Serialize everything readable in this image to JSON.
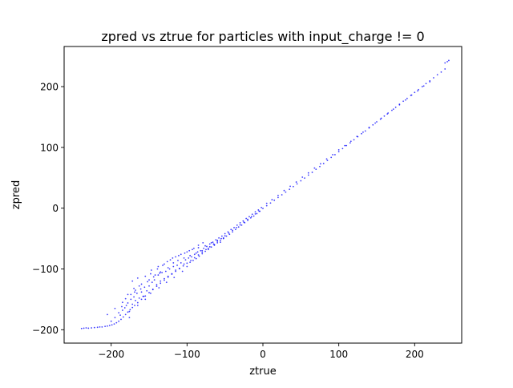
{
  "chart_data": {
    "type": "scatter",
    "title": "zpred vs ztrue for particles with input_charge != 0",
    "xlabel": "ztrue",
    "ylabel": "zpred",
    "xlim": [
      -262,
      262
    ],
    "ylim": [
      -222,
      266
    ],
    "xticks": [
      -200,
      -100,
      0,
      100,
      200
    ],
    "yticks": [
      -200,
      -100,
      0,
      100,
      200
    ],
    "xtick_labels": [
      "−200",
      "−100",
      "0",
      "100",
      "200"
    ],
    "ytick_labels": [
      "−200",
      "−100",
      "0",
      "100",
      "200"
    ],
    "grid": false,
    "legend": "none",
    "marker_color": "#0000ff",
    "series": [
      {
        "points": [
          [
            -239,
            -198
          ],
          [
            -236,
            -197.5
          ],
          [
            -233,
            -197
          ],
          [
            -230,
            -197.5
          ],
          [
            -226,
            -197
          ],
          [
            -222,
            -196.5
          ],
          [
            -218,
            -196
          ],
          [
            -215,
            -195.5
          ],
          [
            -212,
            -195.5
          ],
          [
            -208,
            -194.5
          ],
          [
            -205,
            -194
          ],
          [
            -202,
            -193
          ],
          [
            -199,
            -192
          ],
          [
            -196,
            -190.5
          ],
          [
            -193,
            -188.5
          ],
          [
            -190,
            -186
          ],
          [
            -187,
            -183
          ],
          [
            -184,
            -179
          ],
          [
            -181,
            -175
          ],
          [
            -178,
            -171
          ],
          [
            -175,
            -167
          ],
          [
            -172,
            -163.5
          ],
          [
            -169,
            -160
          ],
          [
            -165,
            -155.5
          ],
          [
            -160,
            -150
          ],
          [
            -155,
            -144.5
          ],
          [
            -150,
            -139
          ],
          [
            -145,
            -133.5
          ],
          [
            -140,
            -128.5
          ],
          [
            -135,
            -123.5
          ],
          [
            -130,
            -118.5
          ],
          [
            -125,
            -113.5
          ],
          [
            -120,
            -108.5
          ],
          [
            -115,
            -104
          ],
          [
            -110,
            -99.5
          ],
          [
            -105,
            -95
          ],
          [
            -100,
            -90.5
          ],
          [
            -95,
            -86
          ],
          [
            -90,
            -81.5
          ],
          [
            -85,
            -77
          ],
          [
            -80,
            -72.5
          ],
          [
            -75,
            -68
          ],
          [
            -70,
            -63.5
          ],
          [
            -65,
            -59
          ],
          [
            -60,
            -54.5
          ],
          [
            -55,
            -50
          ],
          [
            -50,
            -45.5
          ],
          [
            -45,
            -41
          ],
          [
            -40,
            -36.5
          ],
          [
            -35,
            -32
          ],
          [
            -30,
            -27.5
          ],
          [
            -25,
            -23
          ],
          [
            -20,
            -18.5
          ],
          [
            -15,
            -14
          ],
          [
            -10,
            -9.5
          ],
          [
            -5,
            -5
          ],
          [
            0,
            -0.5
          ],
          [
            5,
            4
          ],
          [
            10,
            8.5
          ],
          [
            15,
            13
          ],
          [
            20,
            17.5
          ],
          [
            25,
            22
          ],
          [
            30,
            26.5
          ],
          [
            35,
            31
          ],
          [
            40,
            35.5
          ],
          [
            45,
            40
          ],
          [
            50,
            45
          ],
          [
            55,
            49.5
          ],
          [
            60,
            54.5
          ],
          [
            65,
            59
          ],
          [
            70,
            64
          ],
          [
            75,
            68.5
          ],
          [
            80,
            73.5
          ],
          [
            85,
            78.5
          ],
          [
            90,
            83.5
          ],
          [
            95,
            88
          ],
          [
            100,
            93
          ],
          [
            105,
            98
          ],
          [
            110,
            103
          ],
          [
            115,
            107.5
          ],
          [
            120,
            112.5
          ],
          [
            125,
            117.5
          ],
          [
            130,
            122.5
          ],
          [
            135,
            127
          ],
          [
            140,
            132
          ],
          [
            145,
            137
          ],
          [
            150,
            142
          ],
          [
            155,
            146.5
          ],
          [
            160,
            151.5
          ],
          [
            165,
            156.5
          ],
          [
            170,
            161
          ],
          [
            175,
            166
          ],
          [
            180,
            171
          ],
          [
            185,
            176
          ],
          [
            190,
            180.5
          ],
          [
            195,
            185.5
          ],
          [
            200,
            190.5
          ],
          [
            205,
            195
          ],
          [
            210,
            200
          ],
          [
            215,
            205
          ],
          [
            220,
            209.5
          ],
          [
            225,
            214.5
          ],
          [
            230,
            219.5
          ],
          [
            235,
            224
          ],
          [
            240,
            229
          ],
          [
            245,
            243
          ],
          [
            240,
            239
          ],
          [
            243,
            241
          ],
          [
            -200,
            -186
          ],
          [
            -195,
            -180
          ],
          [
            -190,
            -172
          ],
          [
            -188,
            -176
          ],
          [
            -185,
            -168
          ],
          [
            -182,
            -164
          ],
          [
            -180,
            -160
          ],
          [
            -178,
            -156
          ],
          [
            -176,
            -170
          ],
          [
            -174,
            -150
          ],
          [
            -172,
            -158
          ],
          [
            -170,
            -146
          ],
          [
            -168,
            -152
          ],
          [
            -166,
            -140
          ],
          [
            -165,
            -160
          ],
          [
            -163,
            -148
          ],
          [
            -160,
            -138
          ],
          [
            -158,
            -145
          ],
          [
            -156,
            -130
          ],
          [
            -155,
            -150
          ],
          [
            -153,
            -136
          ],
          [
            -150,
            -128
          ],
          [
            -148,
            -140
          ],
          [
            -146,
            -122
          ],
          [
            -145,
            -134
          ],
          [
            -143,
            -118
          ],
          [
            -140,
            -126
          ],
          [
            -138,
            -110
          ],
          [
            -137,
            -131
          ],
          [
            -135,
            -120
          ],
          [
            -133,
            -106
          ],
          [
            -130,
            -116
          ],
          [
            -128,
            -104
          ],
          [
            -127,
            -122
          ],
          [
            -125,
            -112
          ],
          [
            -123,
            -100
          ],
          [
            -120,
            -108
          ],
          [
            -118,
            -96
          ],
          [
            -117,
            -114
          ],
          [
            -115,
            -102
          ],
          [
            -113,
            -94
          ],
          [
            -110,
            -99
          ],
          [
            -108,
            -90
          ],
          [
            -106,
            -104
          ],
          [
            -104,
            -92
          ],
          [
            -102,
            -85
          ],
          [
            -100,
            -96
          ],
          [
            -98,
            -82
          ],
          [
            -96,
            -89
          ],
          [
            -94,
            -80
          ],
          [
            -92,
            -86
          ],
          [
            -90,
            -76
          ],
          [
            -88,
            -83
          ],
          [
            -86,
            -72
          ],
          [
            -84,
            -79
          ],
          [
            -82,
            -70
          ],
          [
            -80,
            -75
          ],
          [
            -78,
            -66
          ],
          [
            -76,
            -71
          ],
          [
            -74,
            -63
          ],
          [
            -72,
            -68
          ],
          [
            -70,
            -59
          ],
          [
            -68,
            -64
          ],
          [
            -66,
            -56
          ],
          [
            -64,
            -60
          ],
          [
            -62,
            -52
          ],
          [
            -60,
            -57
          ],
          [
            -58,
            -49
          ],
          [
            -56,
            -53
          ],
          [
            -54,
            -46
          ],
          [
            -52,
            -50
          ],
          [
            -50,
            -42
          ],
          [
            -48,
            -46
          ],
          [
            -46,
            -39
          ],
          [
            -44,
            -43
          ],
          [
            -42,
            -35
          ],
          [
            -40,
            -39
          ],
          [
            -38,
            -32
          ],
          [
            -36,
            -35
          ],
          [
            -34,
            -28
          ],
          [
            -32,
            -31
          ],
          [
            -30,
            -24
          ],
          [
            -28,
            -28
          ],
          [
            -26,
            -21
          ],
          [
            -24,
            -24
          ],
          [
            -22,
            -17
          ],
          [
            -20,
            -20
          ],
          [
            -18,
            -14
          ],
          [
            -16,
            -16
          ],
          [
            -14,
            -10
          ],
          [
            -12,
            -13
          ],
          [
            -10,
            -6
          ],
          [
            -8,
            -9
          ],
          [
            -6,
            -3
          ],
          [
            -4,
            -5
          ],
          [
            -2,
            1
          ],
          [
            5,
            8
          ],
          [
            12,
            14
          ],
          [
            20,
            21
          ],
          [
            28,
            29
          ],
          [
            36,
            36
          ],
          [
            44,
            43
          ],
          [
            52,
            51
          ],
          [
            60,
            58
          ],
          [
            68,
            66
          ],
          [
            76,
            73
          ],
          [
            84,
            81
          ],
          [
            92,
            88
          ],
          [
            100,
            96
          ],
          [
            108,
            103
          ],
          [
            116,
            110
          ],
          [
            124,
            118
          ],
          [
            132,
            125
          ],
          [
            140,
            133
          ],
          [
            148,
            140
          ],
          [
            156,
            148
          ],
          [
            164,
            155
          ],
          [
            172,
            163
          ],
          [
            180,
            170
          ],
          [
            188,
            178
          ],
          [
            196,
            186
          ],
          [
            204,
            193
          ],
          [
            212,
            201
          ],
          [
            220,
            208
          ],
          [
            -172,
            -120
          ],
          [
            -168,
            -135
          ],
          [
            -165,
            -115
          ],
          [
            -160,
            -125
          ],
          [
            -157,
            -145
          ],
          [
            -155,
            -112
          ],
          [
            -150,
            -118
          ],
          [
            -147,
            -102
          ],
          [
            -142,
            -110
          ],
          [
            -138,
            -96
          ],
          [
            -135,
            -105
          ],
          [
            -130,
            -92
          ],
          [
            -125,
            -98
          ],
          [
            -122,
            -85
          ],
          [
            -118,
            -90
          ],
          [
            -115,
            -80
          ],
          [
            -112,
            -86
          ],
          [
            -108,
            -76
          ],
          [
            -104,
            -82
          ],
          [
            -100,
            -72
          ],
          [
            -96,
            -78
          ],
          [
            -93,
            -68
          ],
          [
            -88,
            -74
          ],
          [
            -85,
            -65
          ],
          [
            -80,
            -70
          ],
          [
            -76,
            -62
          ],
          [
            -72,
            -66
          ],
          [
            -68,
            -57
          ],
          [
            -64,
            -61
          ],
          [
            -60,
            -53
          ],
          [
            -56,
            -56
          ],
          [
            -52,
            -49
          ],
          [
            -185,
            -155
          ],
          [
            -178,
            -142
          ],
          [
            -176,
            -180
          ],
          [
            -170,
            -132
          ],
          [
            -163,
            -128
          ],
          [
            -148,
            -108
          ],
          [
            -139,
            -100
          ],
          [
            -132,
            -94
          ],
          [
            -126,
            -88
          ],
          [
            -119,
            -82
          ],
          [
            -111,
            -78
          ],
          [
            -103,
            -74
          ],
          [
            -97,
            -70
          ],
          [
            -91,
            -66
          ],
          [
            -85,
            -61
          ],
          [
            -79,
            -57
          ],
          [
            -205,
            -175
          ],
          [
            -195,
            -165
          ],
          [
            -186,
            -162
          ],
          [
            -181,
            -149
          ],
          [
            -174,
            -142
          ],
          [
            -169,
            -138
          ],
          [
            -161,
            -133
          ],
          [
            -152,
            -121
          ],
          [
            -144,
            -113
          ],
          [
            -136,
            -107
          ]
        ]
      }
    ]
  }
}
